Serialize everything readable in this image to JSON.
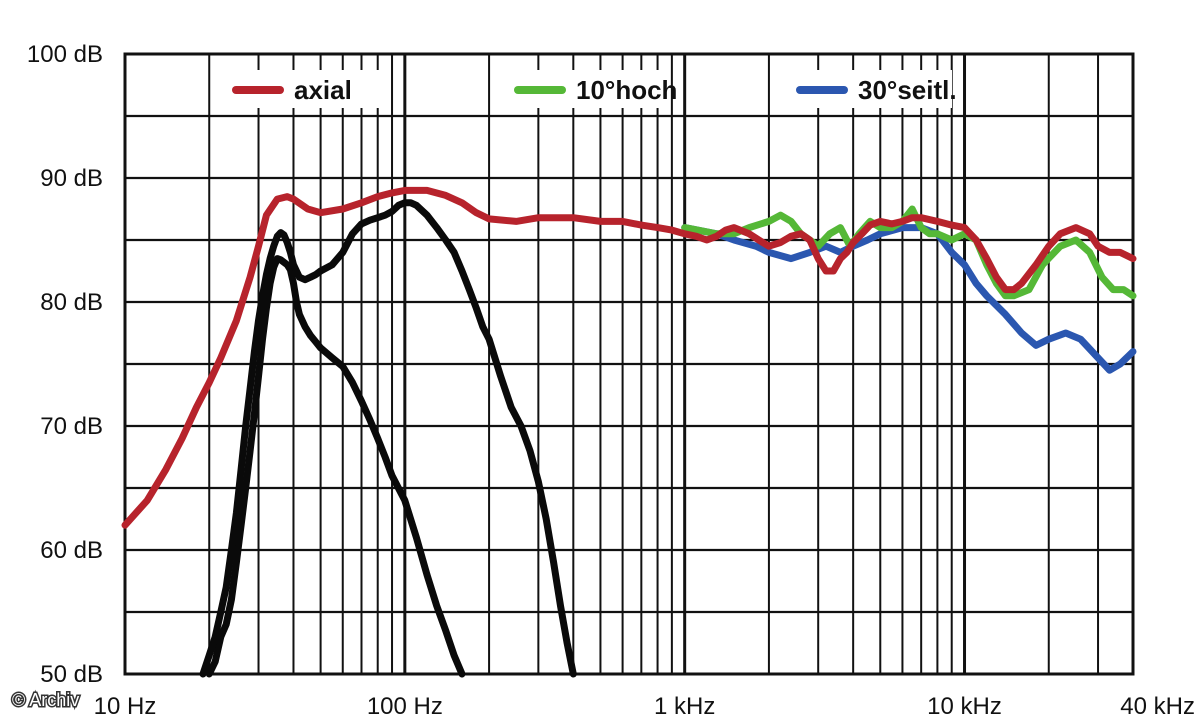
{
  "chart_data": {
    "type": "line",
    "x_scale": "log",
    "xlim": [
      10,
      40000
    ],
    "ylim": [
      50,
      100
    ],
    "grid": true,
    "y_ticks": [
      {
        "value": 100,
        "label": "100 dB"
      },
      {
        "value": 90,
        "label": "90 dB"
      },
      {
        "value": 80,
        "label": "80 dB"
      },
      {
        "value": 70,
        "label": "70 dB"
      },
      {
        "value": 60,
        "label": "60 dB"
      },
      {
        "value": 50,
        "label": "50 dB"
      }
    ],
    "x_ticks": [
      {
        "value": 10,
        "label": "10 Hz"
      },
      {
        "value": 100,
        "label": "100 Hz"
      },
      {
        "value": 1000,
        "label": "1 kHz"
      },
      {
        "value": 10000,
        "label": "10 kHz"
      },
      {
        "value": 40000,
        "label": "40 kHz"
      }
    ],
    "legend_position": "top",
    "series": [
      {
        "name": "30°seitl.",
        "color": "#2b57b0",
        "legend": true,
        "x": [
          1000,
          1300,
          1500,
          1800,
          2000,
          2400,
          2800,
          3200,
          3600,
          4000,
          4500,
          5000,
          6000,
          7000,
          8000,
          9000,
          10000,
          11000,
          12000,
          14000,
          16000,
          18000,
          20000,
          23000,
          26000,
          30000,
          33000,
          36000,
          40000
        ],
        "y": [
          86,
          85.5,
          85,
          84.5,
          84,
          83.5,
          84,
          84.5,
          84,
          84.5,
          85,
          85.5,
          86,
          86,
          85.5,
          84,
          83,
          81.5,
          80.5,
          79,
          77.5,
          76.5,
          77,
          77.5,
          77,
          75.5,
          74.5,
          75,
          76
        ]
      },
      {
        "name": "10°hoch",
        "color": "#55b837",
        "legend": true,
        "x": [
          1000,
          1300,
          1500,
          1700,
          2000,
          2200,
          2400,
          2600,
          2800,
          3000,
          3300,
          3600,
          3900,
          4200,
          4600,
          5000,
          5500,
          6000,
          6500,
          7000,
          7500,
          8000,
          9000,
          10000,
          11000,
          12000,
          13000,
          14000,
          15000,
          17000,
          19000,
          22000,
          25000,
          28000,
          31000,
          34000,
          37000,
          40000
        ],
        "y": [
          86,
          85.5,
          85.5,
          86,
          86.5,
          87,
          86.5,
          85.5,
          85,
          84.5,
          85.5,
          86,
          84.5,
          85.5,
          86.5,
          86,
          86,
          86.5,
          87.5,
          86,
          85.5,
          85.5,
          85,
          85.5,
          85,
          83,
          81.5,
          80.5,
          80.5,
          81,
          83,
          84.5,
          85,
          84,
          82,
          81,
          81,
          80.5
        ]
      },
      {
        "name": "axial",
        "color": "#b7232c",
        "legend": true,
        "x": [
          10,
          12,
          14,
          16,
          18,
          20,
          22,
          25,
          28,
          30,
          32,
          35,
          38,
          40,
          45,
          50,
          60,
          70,
          80,
          90,
          100,
          110,
          120,
          140,
          160,
          180,
          200,
          250,
          300,
          400,
          500,
          600,
          700,
          800,
          900,
          1000,
          1100,
          1200,
          1300,
          1400,
          1500,
          1700,
          1900,
          2000,
          2200,
          2400,
          2600,
          2800,
          3000,
          3200,
          3400,
          3600,
          3800,
          4000,
          4300,
          4600,
          5000,
          5500,
          6000,
          6500,
          7000,
          8000,
          9000,
          10000,
          11000,
          12000,
          13000,
          14000,
          15000,
          16000,
          18000,
          20000,
          22000,
          25000,
          28000,
          30000,
          33000,
          36000,
          40000
        ],
        "y": [
          62,
          64,
          66.5,
          69,
          71.5,
          73.5,
          75.5,
          78.5,
          82,
          84.5,
          87,
          88.3,
          88.5,
          88.3,
          87.5,
          87.2,
          87.5,
          88,
          88.5,
          88.8,
          89,
          89,
          89,
          88.6,
          88,
          87.2,
          86.7,
          86.5,
          86.8,
          86.8,
          86.5,
          86.5,
          86.2,
          86,
          85.8,
          85.5,
          85.3,
          85,
          85.3,
          85.8,
          86,
          85.5,
          84.8,
          84.5,
          84.8,
          85.3,
          85.5,
          85,
          83.5,
          82.5,
          82.5,
          83.5,
          84,
          84.8,
          85.5,
          86.2,
          86.5,
          86.3,
          86.5,
          86.8,
          86.8,
          86.5,
          86.2,
          86,
          85,
          83.5,
          82,
          81,
          81,
          81.5,
          83,
          84.5,
          85.5,
          86,
          85.5,
          84.5,
          84,
          84,
          83.5
        ]
      },
      {
        "name": "",
        "color": "#0a0a0a",
        "legend": false,
        "x": [
          20,
          21,
          22,
          23,
          24,
          25,
          26,
          27,
          28,
          29,
          30,
          31,
          32,
          33,
          34,
          35,
          36,
          37,
          38,
          39,
          40,
          41,
          42,
          44,
          46,
          48,
          50,
          55,
          60,
          65,
          70,
          75,
          80,
          85,
          90,
          100,
          110,
          120,
          130,
          140,
          150,
          160
        ],
        "y": [
          50,
          51,
          53,
          54,
          56,
          59,
          62,
          65,
          68,
          71,
          74,
          77,
          79.5,
          81.5,
          82.8,
          83.5,
          83.4,
          83.2,
          83,
          82.6,
          81.5,
          80,
          79,
          78,
          77.3,
          76.8,
          76.3,
          75.5,
          74.8,
          73.5,
          72,
          70.5,
          69,
          67.5,
          66,
          64,
          61,
          58,
          55.5,
          53.5,
          51.5,
          50
        ]
      },
      {
        "name": "",
        "color": "#0a0a0a",
        "legend": false,
        "x": [
          19,
          20,
          21,
          22,
          23,
          24,
          25,
          26,
          27,
          28,
          29,
          30,
          31,
          32,
          33,
          34,
          35,
          36,
          37,
          38,
          39,
          40,
          42,
          44,
          46,
          48,
          50,
          55,
          60,
          65,
          70,
          75,
          80,
          85,
          90,
          95,
          100,
          105,
          110,
          120,
          130,
          140,
          150,
          160,
          170,
          180,
          190,
          200,
          220,
          240,
          260,
          280,
          300,
          320,
          340,
          360,
          380,
          400
        ],
        "y": [
          50,
          51.5,
          53,
          55,
          57,
          60,
          63,
          66.5,
          70,
          73,
          76,
          78.5,
          80.5,
          82.2,
          83.5,
          84.5,
          85.3,
          85.6,
          85.4,
          84.8,
          84,
          83,
          82,
          81.8,
          82,
          82.2,
          82.5,
          83,
          84,
          85.5,
          86.3,
          86.6,
          86.8,
          87,
          87.3,
          87.8,
          88,
          88,
          87.8,
          87,
          86,
          85,
          84,
          82.5,
          81,
          79.5,
          78,
          77,
          74,
          71.5,
          70,
          68,
          65.5,
          62.5,
          59,
          55.5,
          52.5,
          50
        ]
      }
    ]
  },
  "credit": "© Archiv"
}
